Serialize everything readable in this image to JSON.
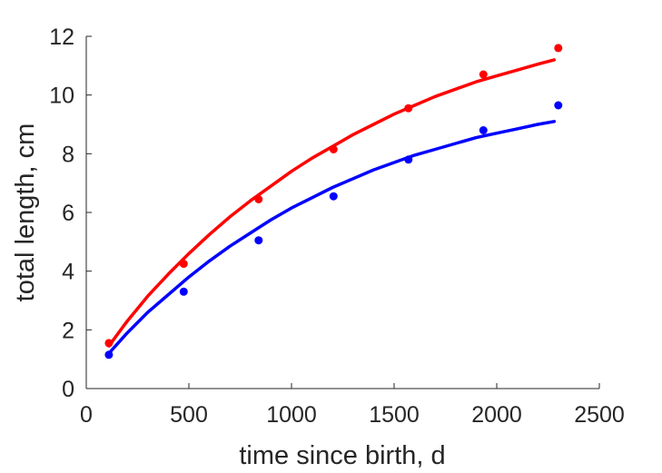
{
  "chart_data": {
    "type": "scatter",
    "title": "",
    "xlabel": "time since birth, d",
    "ylabel": "total length, cm",
    "xlim": [
      0,
      2500
    ],
    "ylim": [
      0,
      12
    ],
    "xticks": [
      0,
      500,
      1000,
      1500,
      2000,
      2500
    ],
    "yticks": [
      0,
      2,
      4,
      6,
      8,
      10,
      12
    ],
    "xtick_labels": [
      "0",
      "500",
      "1000",
      "1500",
      "2000",
      "2500"
    ],
    "ytick_labels": [
      "0",
      "2",
      "4",
      "6",
      "8",
      "10",
      "12"
    ],
    "grid": false,
    "series": [
      {
        "color": "#ff0000",
        "points": {
          "x": [
            110,
            475,
            840,
            1205,
            1570,
            1935,
            2300
          ],
          "y": [
            1.55,
            4.25,
            6.45,
            8.15,
            9.55,
            10.7,
            11.6
          ]
        },
        "fit": {
          "x": [
            110,
            200,
            300,
            400,
            500,
            600,
            700,
            800,
            900,
            1000,
            1100,
            1200,
            1300,
            1400,
            1500,
            1600,
            1700,
            1800,
            1900,
            2000,
            2100,
            2200,
            2280
          ],
          "y": [
            1.45,
            2.3,
            3.15,
            3.9,
            4.6,
            5.25,
            5.85,
            6.4,
            6.9,
            7.4,
            7.85,
            8.25,
            8.65,
            9.0,
            9.35,
            9.65,
            9.95,
            10.2,
            10.45,
            10.65,
            10.85,
            11.05,
            11.2
          ]
        }
      },
      {
        "color": "#0000ff",
        "points": {
          "x": [
            110,
            475,
            840,
            1205,
            1570,
            1935,
            2300
          ],
          "y": [
            1.15,
            3.3,
            5.05,
            6.55,
            7.8,
            8.8,
            9.65
          ]
        },
        "fit": {
          "x": [
            110,
            200,
            300,
            400,
            500,
            600,
            700,
            800,
            900,
            1000,
            1100,
            1200,
            1300,
            1400,
            1500,
            1600,
            1700,
            1800,
            1900,
            2000,
            2100,
            2200,
            2280
          ],
          "y": [
            1.2,
            1.9,
            2.6,
            3.2,
            3.8,
            4.35,
            4.85,
            5.3,
            5.75,
            6.15,
            6.5,
            6.85,
            7.15,
            7.45,
            7.7,
            7.95,
            8.15,
            8.35,
            8.55,
            8.7,
            8.85,
            9.0,
            9.1
          ]
        }
      }
    ]
  }
}
